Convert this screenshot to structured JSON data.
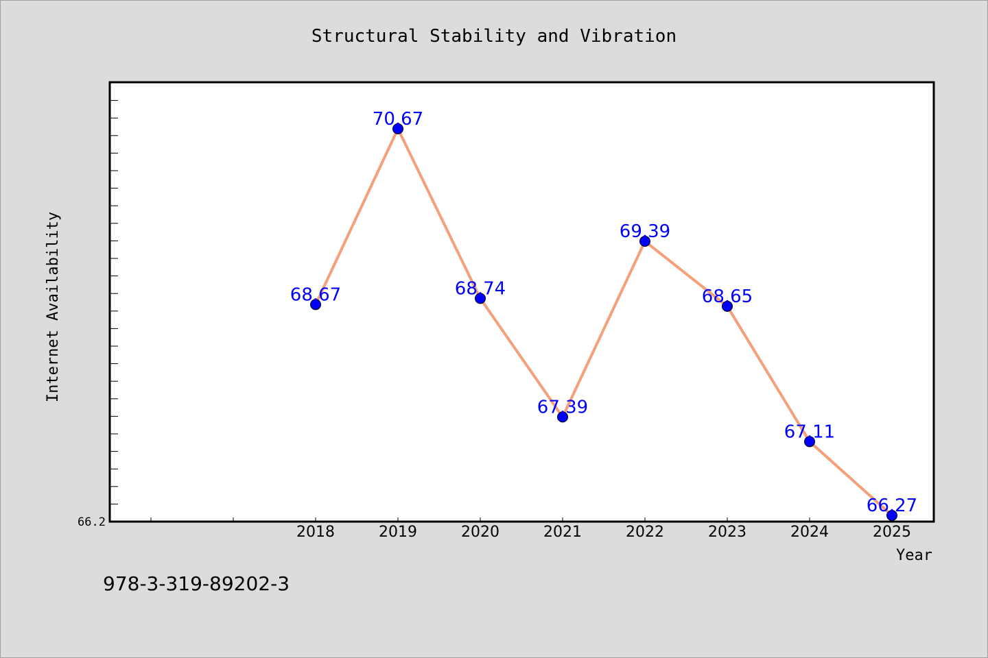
{
  "chart_data": {
    "type": "line",
    "title": "Structural Stability and Vibration",
    "xlabel": "Year",
    "ylabel": "Internet Availability",
    "categories": [
      "2018",
      "2019",
      "2020",
      "2021",
      "2022",
      "2023",
      "2024",
      "2025"
    ],
    "values": [
      68.67,
      70.67,
      68.74,
      67.39,
      69.39,
      68.65,
      67.11,
      66.27
    ],
    "data_labels": [
      "68.67",
      "70.67",
      "68.74",
      "67.39",
      "69.39",
      "68.65",
      "67.11",
      "66.27"
    ],
    "ylim": [
      66.2,
      71.2
    ],
    "y_tick_labels": [
      "66.2"
    ],
    "grid": false,
    "colors": {
      "line": "#f4a07a",
      "marker": "#0000ff",
      "label": "#0000ff",
      "plot_bg": "#ffffff",
      "page_bg": "#dcdcdc"
    }
  },
  "footer": {
    "isbn": "978-3-319-89202-3"
  }
}
